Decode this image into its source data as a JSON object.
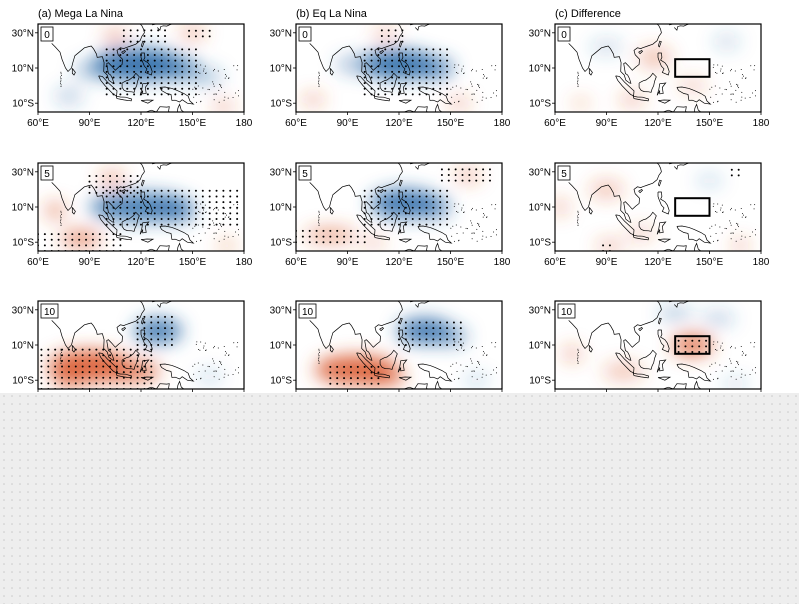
{
  "columns": [
    {
      "title": "(a) Mega La Nina"
    },
    {
      "title": "(b) Eq La Nina"
    },
    {
      "title": "(c) Difference"
    }
  ],
  "lags": [
    "0",
    "5",
    "10"
  ],
  "x_tick_labels": [
    "60°E",
    "90°E",
    "120°E",
    "150°E",
    "180"
  ],
  "y_tick_labels": [
    "30°N",
    "10°N",
    "10°S"
  ],
  "colors": {
    "negative": "#2c6aa8",
    "positive": "#d9572b",
    "neutral_bg": "#ffffff",
    "coast": "#000000",
    "stipple": "#000000",
    "masked_overlay": "#eeeeee"
  },
  "box_region": {
    "lon": [
      130,
      150
    ],
    "lat": [
      5,
      15
    ],
    "shown_in_column": 2
  },
  "map_extent": {
    "lon": [
      60,
      180
    ],
    "lat": [
      -15,
      35
    ]
  }
}
